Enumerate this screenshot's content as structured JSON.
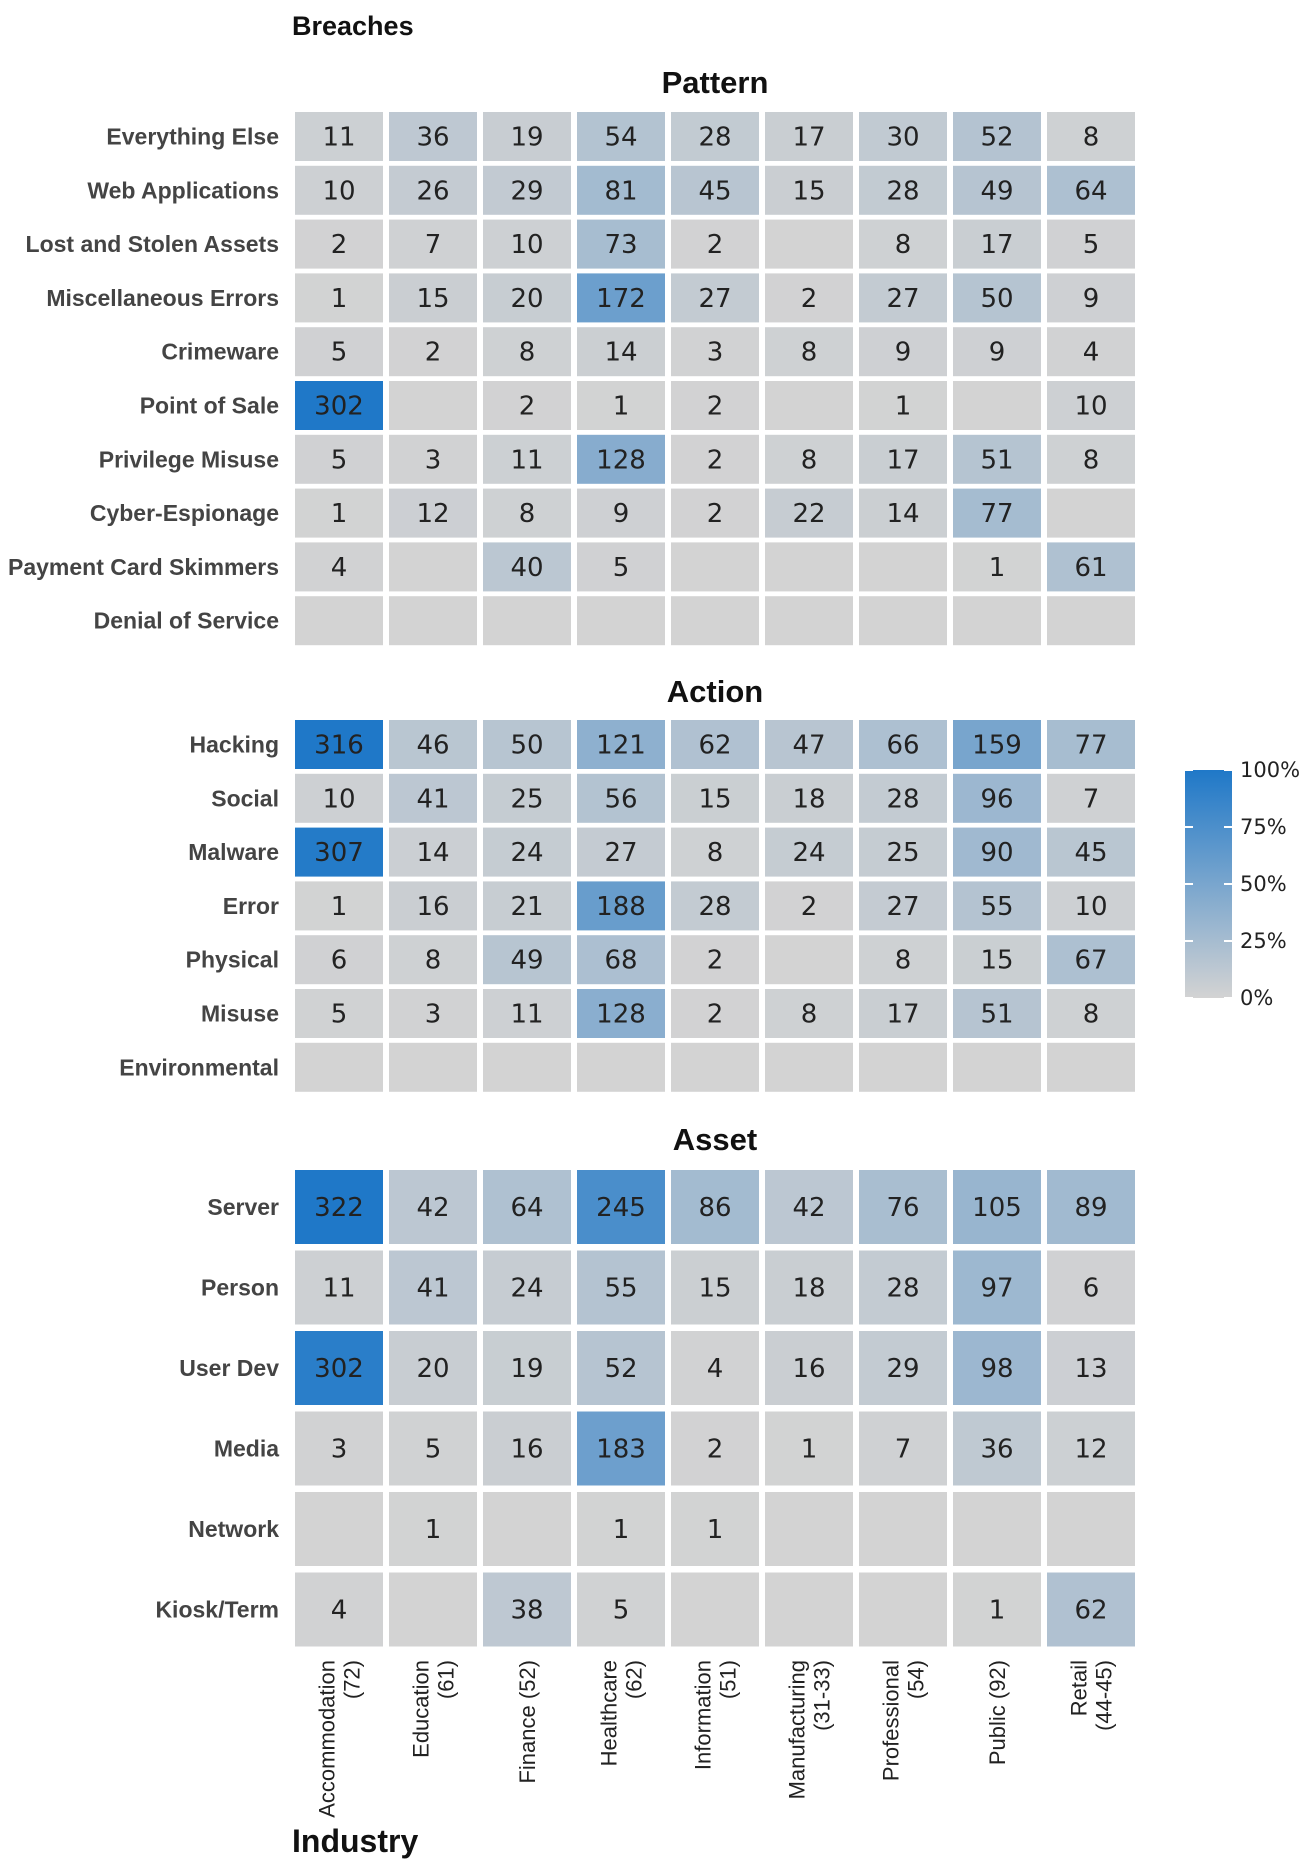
{
  "chart_data": {
    "type": "heatmap",
    "title": "Breaches",
    "xlabel": "Industry",
    "columns": [
      [
        "Accommodation",
        "(72)"
      ],
      [
        "Education",
        "(61)"
      ],
      [
        "Finance (52)"
      ],
      [
        "Healthcare",
        "(62)"
      ],
      [
        "Information",
        "(51)"
      ],
      [
        "Manufacturing",
        "(31-33)"
      ],
      [
        "Professional",
        "(54)"
      ],
      [
        "Public (92)"
      ],
      [
        "Retail",
        "(44-45)"
      ]
    ],
    "panels": [
      {
        "title": "Pattern",
        "rows": [
          {
            "label": "Everything Else",
            "values": [
              11,
              36,
              19,
              54,
              28,
              17,
              30,
              52,
              8
            ]
          },
          {
            "label": "Web Applications",
            "values": [
              10,
              26,
              29,
              81,
              45,
              15,
              28,
              49,
              64
            ]
          },
          {
            "label": "Lost and Stolen Assets",
            "values": [
              2,
              7,
              10,
              73,
              2,
              null,
              8,
              17,
              5
            ]
          },
          {
            "label": "Miscellaneous Errors",
            "values": [
              1,
              15,
              20,
              172,
              27,
              2,
              27,
              50,
              9
            ]
          },
          {
            "label": "Crimeware",
            "values": [
              5,
              2,
              8,
              14,
              3,
              8,
              9,
              9,
              4
            ]
          },
          {
            "label": "Point of Sale",
            "values": [
              302,
              null,
              2,
              1,
              2,
              null,
              1,
              null,
              10
            ]
          },
          {
            "label": "Privilege Misuse",
            "values": [
              5,
              3,
              11,
              128,
              2,
              8,
              17,
              51,
              8
            ]
          },
          {
            "label": "Cyber-Espionage",
            "values": [
              1,
              12,
              8,
              9,
              2,
              22,
              14,
              77,
              null
            ]
          },
          {
            "label": "Payment Card Skimmers",
            "values": [
              4,
              null,
              40,
              5,
              null,
              null,
              null,
              1,
              61
            ]
          },
          {
            "label": "Denial of Service",
            "values": [
              null,
              null,
              null,
              null,
              null,
              null,
              null,
              null,
              null
            ]
          }
        ]
      },
      {
        "title": "Action",
        "rows": [
          {
            "label": "Hacking",
            "values": [
              316,
              46,
              50,
              121,
              62,
              47,
              66,
              159,
              77
            ]
          },
          {
            "label": "Social",
            "values": [
              10,
              41,
              25,
              56,
              15,
              18,
              28,
              96,
              7
            ]
          },
          {
            "label": "Malware",
            "values": [
              307,
              14,
              24,
              27,
              8,
              24,
              25,
              90,
              45
            ]
          },
          {
            "label": "Error",
            "values": [
              1,
              16,
              21,
              188,
              28,
              2,
              27,
              55,
              10
            ]
          },
          {
            "label": "Physical",
            "values": [
              6,
              8,
              49,
              68,
              2,
              null,
              8,
              15,
              67
            ]
          },
          {
            "label": "Misuse",
            "values": [
              5,
              3,
              11,
              128,
              2,
              8,
              17,
              51,
              8
            ]
          },
          {
            "label": "Environmental",
            "values": [
              null,
              null,
              null,
              null,
              null,
              null,
              null,
              null,
              null
            ]
          }
        ]
      },
      {
        "title": "Asset",
        "rows": [
          {
            "label": "Server",
            "values": [
              322,
              42,
              64,
              245,
              86,
              42,
              76,
              105,
              89
            ]
          },
          {
            "label": "Person",
            "values": [
              11,
              41,
              24,
              55,
              15,
              18,
              28,
              97,
              6
            ]
          },
          {
            "label": "User Dev",
            "values": [
              302,
              20,
              19,
              52,
              4,
              16,
              29,
              98,
              13
            ]
          },
          {
            "label": "Media",
            "values": [
              3,
              5,
              16,
              183,
              2,
              1,
              7,
              36,
              12
            ]
          },
          {
            "label": "Network",
            "values": [
              null,
              1,
              null,
              1,
              1,
              null,
              null,
              null,
              null
            ]
          },
          {
            "label": "Kiosk/Term",
            "values": [
              4,
              null,
              38,
              5,
              null,
              null,
              null,
              1,
              62
            ]
          }
        ]
      }
    ],
    "legend": {
      "labels": [
        "100%",
        "75%",
        "50%",
        "25%",
        "0%"
      ],
      "color_low": "#d3d3d3",
      "color_high": "#1f78c8"
    }
  }
}
